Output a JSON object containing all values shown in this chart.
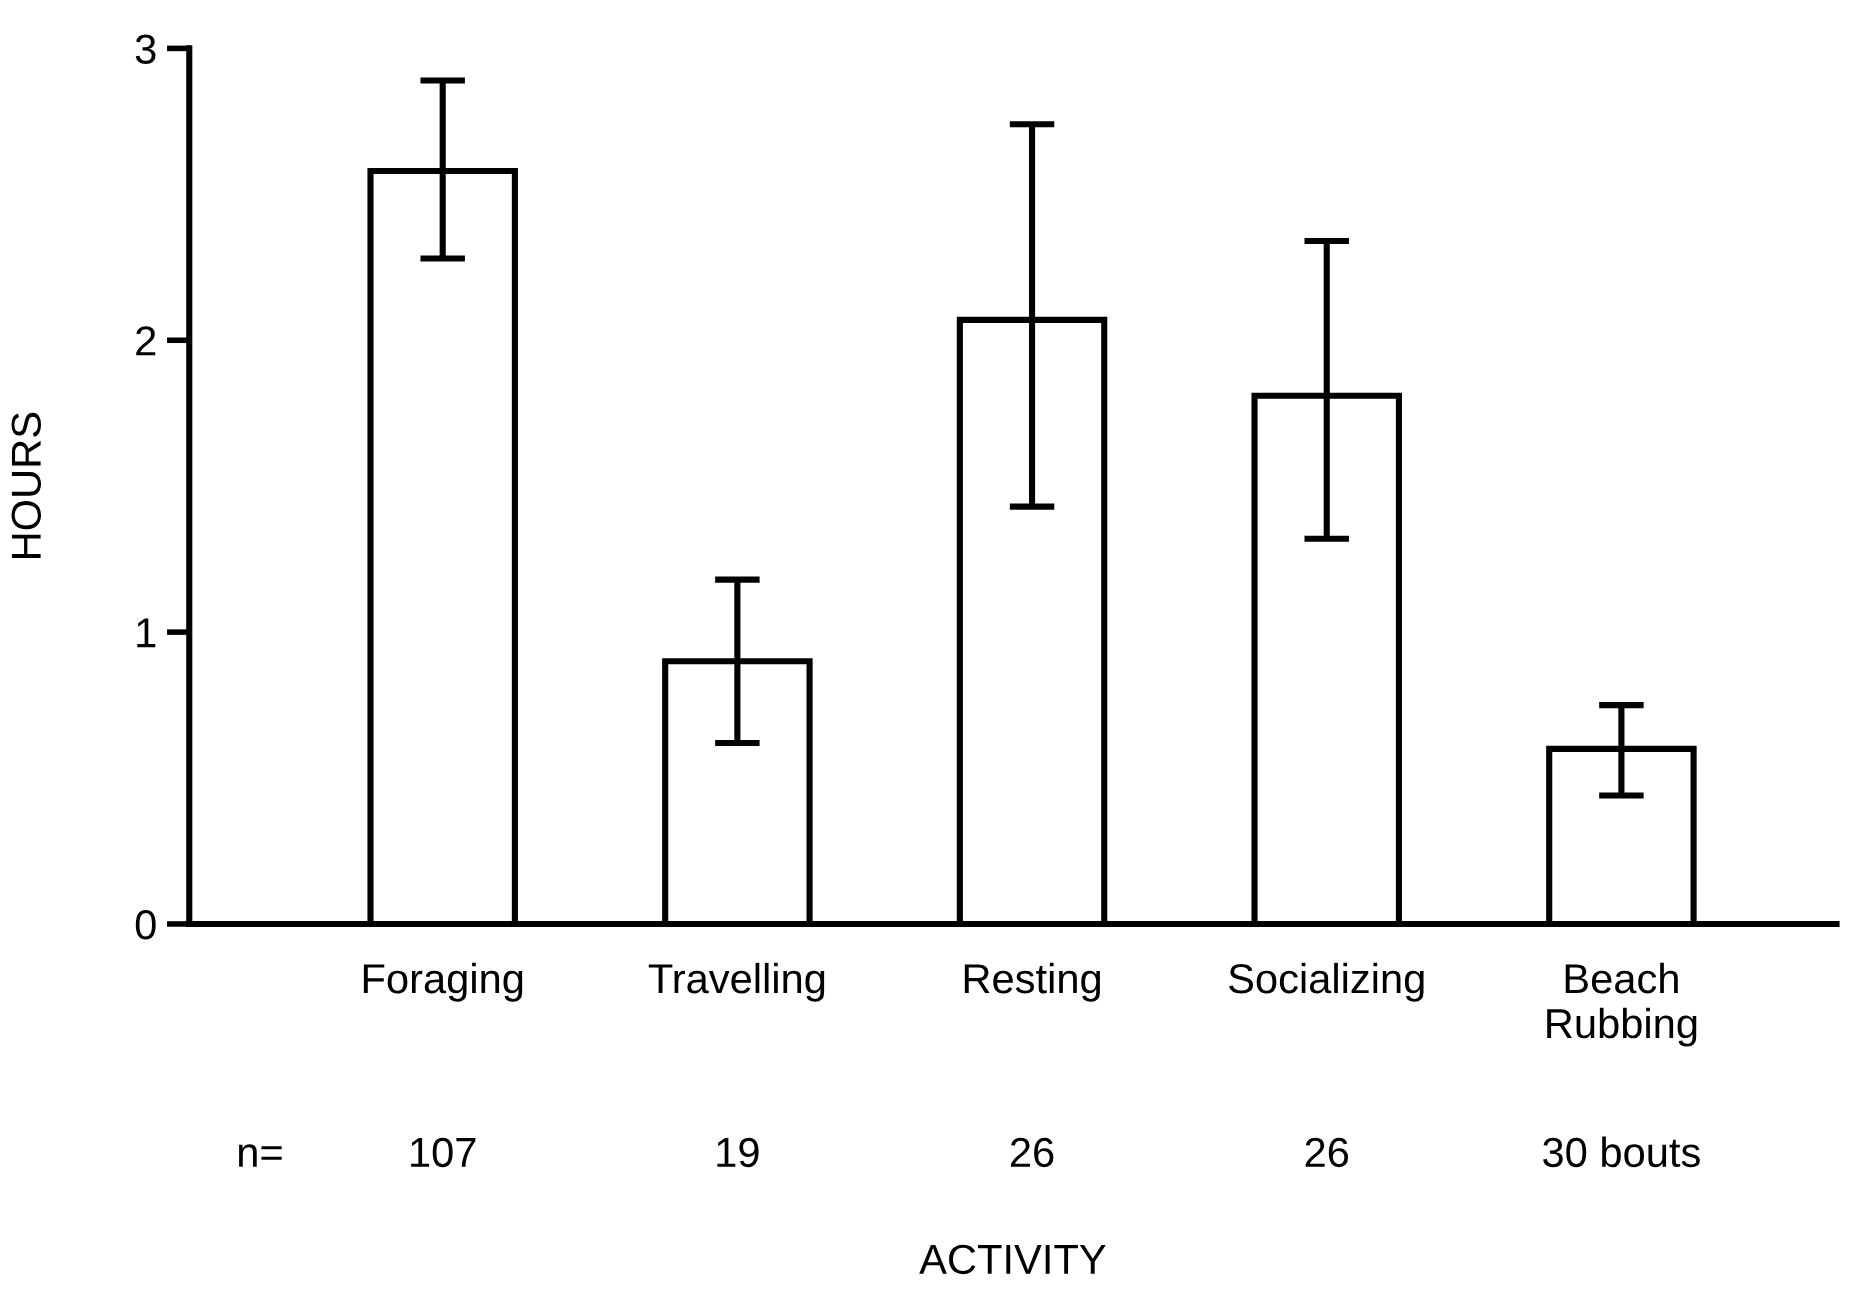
{
  "chart_data": {
    "type": "bar",
    "xlabel": "ACTIVITY",
    "ylabel": "HOURS",
    "categories": [
      "Foraging",
      "Travelling",
      "Resting",
      "Socializing",
      "Beach\nRubbing"
    ],
    "values": [
      2.58,
      0.9,
      2.07,
      1.81,
      0.6
    ],
    "errors": [
      [
        2.28,
        2.89
      ],
      [
        0.62,
        1.18
      ],
      [
        1.43,
        2.74
      ],
      [
        1.32,
        2.34
      ],
      [
        0.44,
        0.75
      ]
    ],
    "color": "#ffffff",
    "ylim": [
      0,
      3
    ],
    "yticks": [
      0,
      1,
      2,
      3
    ],
    "grid": false,
    "legend": false,
    "annotations": [
      "n=",
      "107",
      "19",
      "26",
      "26",
      "30 bouts"
    ]
  }
}
